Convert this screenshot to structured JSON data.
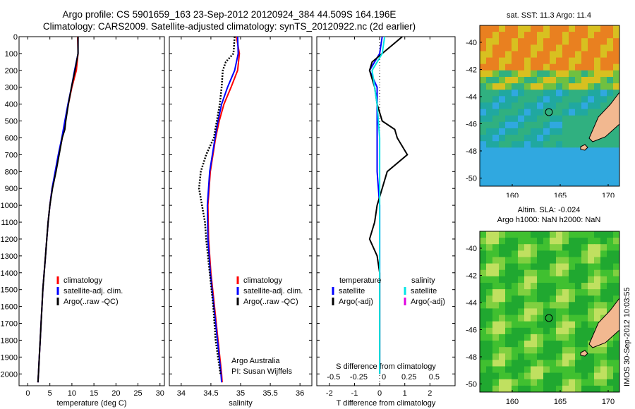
{
  "title": {
    "line1": "Argo profile: CS 5901659_163 23-Sep-2012 20120924_384 44.509S 164.196E",
    "line2": "Climatology: CARS2009. Satellite-adjusted climatology: synTS_20120922.nc (2d earlier)"
  },
  "colors": {
    "climatology": "#ff0000",
    "satellite": "#0000ff",
    "argo": "#000000",
    "salinity_satellite": "#00e5e5",
    "salinity_argo": "#e000e0",
    "land": "#f2b890"
  },
  "map_sst": {
    "title": "sat. SST: 11.3 Argo: 11.4",
    "yticks": [
      "-40",
      "-42",
      "-44",
      "-46",
      "-48",
      "-50"
    ],
    "xticks": [
      "160",
      "165",
      "170"
    ]
  },
  "map_sla": {
    "title1": "Altim. SLA: -0.024",
    "title2": "Argo h1000: NaN h2000: NaN",
    "yticks": [
      "-40",
      "-42",
      "-44",
      "-46",
      "-48",
      "-50"
    ],
    "xticks": [
      "160",
      "165",
      "170"
    ]
  },
  "credit": "IMOS 30-Sep-2012 10:03:55",
  "chart_data": [
    {
      "type": "line",
      "name": "temperature",
      "xlabel": "temperature (deg C)",
      "ylabel": "",
      "xlim": [
        -2,
        31
      ],
      "ylim": [
        2070,
        0
      ],
      "xticks": [
        0,
        5,
        10,
        15,
        20,
        25,
        30
      ],
      "yticks": [
        0,
        100,
        200,
        300,
        400,
        500,
        600,
        700,
        800,
        900,
        1000,
        1100,
        1200,
        1300,
        1400,
        1500,
        1600,
        1700,
        1800,
        1900,
        2000
      ],
      "legend": [
        "climatology",
        "satellite-adj. clim.",
        "Argo(..raw -QC)"
      ],
      "series": [
        {
          "name": "climatology",
          "depth": [
            0,
            100,
            200,
            300,
            400,
            500,
            600,
            700,
            800,
            900,
            1000,
            1100,
            1200,
            1300,
            1400,
            1500,
            1600,
            1700,
            1800,
            1900,
            2000,
            2050
          ],
          "values": [
            11.3,
            11.4,
            11.0,
            10.0,
            9.2,
            8.5,
            7.8,
            7.0,
            6.3,
            5.5,
            5.0,
            4.6,
            4.3,
            4.0,
            3.7,
            3.4,
            3.2,
            3.0,
            2.8,
            2.6,
            2.4,
            2.3
          ]
        },
        {
          "name": "satellite-adj. clim.",
          "depth": [
            0,
            100,
            200,
            300,
            400,
            500,
            600,
            700,
            800,
            900,
            1000,
            1100,
            1200,
            1300,
            1400,
            1500,
            1600,
            1700,
            1800,
            1900,
            2000,
            2050
          ],
          "values": [
            11.4,
            11.4,
            10.6,
            9.9,
            9.1,
            8.4,
            7.7,
            6.9,
            6.2,
            5.5,
            5.0,
            4.6,
            4.3,
            4.0,
            3.7,
            3.4,
            3.2,
            3.0,
            2.8,
            2.6,
            2.4,
            2.3
          ]
        },
        {
          "name": "Argo(..raw -QC)",
          "depth": [
            0,
            100,
            200,
            300,
            400,
            500,
            550,
            600,
            700,
            800,
            900,
            1000,
            1100,
            1200,
            1300,
            1400,
            1500,
            1600,
            1700,
            1800,
            1900,
            2000,
            2050
          ],
          "values": [
            11.4,
            11.4,
            10.7,
            9.9,
            9.2,
            8.6,
            8.4,
            7.8,
            7.1,
            6.4,
            5.6,
            5.0,
            4.6,
            4.3,
            4.0,
            3.7,
            3.4,
            3.2,
            3.0,
            2.8,
            2.6,
            2.4,
            2.3
          ]
        }
      ]
    },
    {
      "type": "line",
      "name": "salinity",
      "xlabel": "salinity",
      "xlim": [
        33.8,
        36.2
      ],
      "ylim": [
        2070,
        0
      ],
      "xticks": [
        34,
        34.5,
        35,
        35.5,
        36
      ],
      "legend": [
        "climatology",
        "satellite-adj. clim.",
        "Argo(..raw -QC)"
      ],
      "annotation": [
        "Argo Australia",
        "PI: Susan Wijffels"
      ],
      "series": [
        {
          "name": "climatology",
          "depth": [
            0,
            100,
            200,
            300,
            400,
            500,
            600,
            800,
            1000,
            1200,
            1400,
            1600,
            1800,
            2000,
            2050
          ],
          "values": [
            34.93,
            34.98,
            34.95,
            34.84,
            34.72,
            34.64,
            34.58,
            34.49,
            34.45,
            34.46,
            34.5,
            34.56,
            34.62,
            34.68,
            34.69
          ]
        },
        {
          "name": "satellite-adj. clim.",
          "depth": [
            0,
            100,
            200,
            300,
            400,
            500,
            600,
            800,
            1000,
            1200,
            1400,
            1600,
            1800,
            2000,
            2050
          ],
          "values": [
            34.95,
            34.96,
            34.9,
            34.78,
            34.68,
            34.62,
            34.57,
            34.48,
            34.44,
            34.45,
            34.49,
            34.55,
            34.61,
            34.67,
            34.68
          ]
        },
        {
          "name": "Argo(..raw -QC)",
          "depth": [
            0,
            100,
            150,
            200,
            300,
            400,
            500,
            600,
            700,
            800,
            900,
            1000,
            1100,
            1200,
            1300,
            1400,
            1600,
            1800,
            1900,
            2000
          ],
          "values": [
            34.9,
            34.88,
            34.75,
            34.7,
            34.68,
            34.65,
            34.6,
            34.55,
            34.42,
            34.33,
            34.3,
            34.35,
            34.4,
            34.42,
            34.45,
            34.48,
            34.54,
            34.58,
            34.62,
            34.66
          ]
        }
      ]
    },
    {
      "type": "line",
      "name": "difference",
      "xlabel": "T difference from climatology",
      "xlabel2": "S difference from climatology",
      "xlim": [
        -2.5,
        3
      ],
      "ylim": [
        2070,
        0
      ],
      "xticks": [
        -2,
        -1,
        0,
        1,
        2
      ],
      "xticks_s": [
        "-0.5",
        "-0.25",
        "0",
        "0.25",
        "0.5"
      ],
      "legend_t": {
        "head": "temperature",
        "items": [
          "satellite",
          "Argo(-adj)"
        ]
      },
      "legend_s": {
        "head": "salinity",
        "items": [
          "satellite",
          "Argo(-adj)"
        ]
      },
      "series": [
        {
          "name": "temperature satellite",
          "depth": [
            0,
            100,
            200,
            300,
            400,
            500,
            600,
            800,
            1000,
            1200,
            1400,
            1600,
            1800,
            2000
          ],
          "values": [
            0.1,
            0.0,
            -0.4,
            -0.1,
            -0.1,
            -0.1,
            -0.1,
            -0.1,
            0.0,
            0.0,
            0.0,
            0.0,
            0.0,
            0.0
          ]
        },
        {
          "name": "temperature Argo(-adj)",
          "depth": [
            0,
            50,
            100,
            150,
            200,
            300,
            400,
            500,
            550,
            600,
            700,
            800,
            900,
            1000,
            1100,
            1200,
            1300,
            1400,
            1600,
            1800,
            2000
          ],
          "values": [
            0.9,
            0.5,
            0.1,
            -0.3,
            -0.4,
            -0.2,
            -0.1,
            0.1,
            0.6,
            0.7,
            1.1,
            0.3,
            0.1,
            -0.1,
            -0.2,
            -0.4,
            -0.1,
            0.0,
            0.0,
            0.0,
            0.0
          ]
        },
        {
          "name": "salinity satellite",
          "depth": [
            0,
            100,
            200,
            300,
            400,
            600,
            800,
            1000,
            1400,
            2000
          ],
          "values": [
            0.2,
            0.1,
            -0.3,
            -0.2,
            -0.1,
            0.0,
            0.0,
            0.0,
            0.0,
            0.0
          ]
        }
      ]
    }
  ]
}
